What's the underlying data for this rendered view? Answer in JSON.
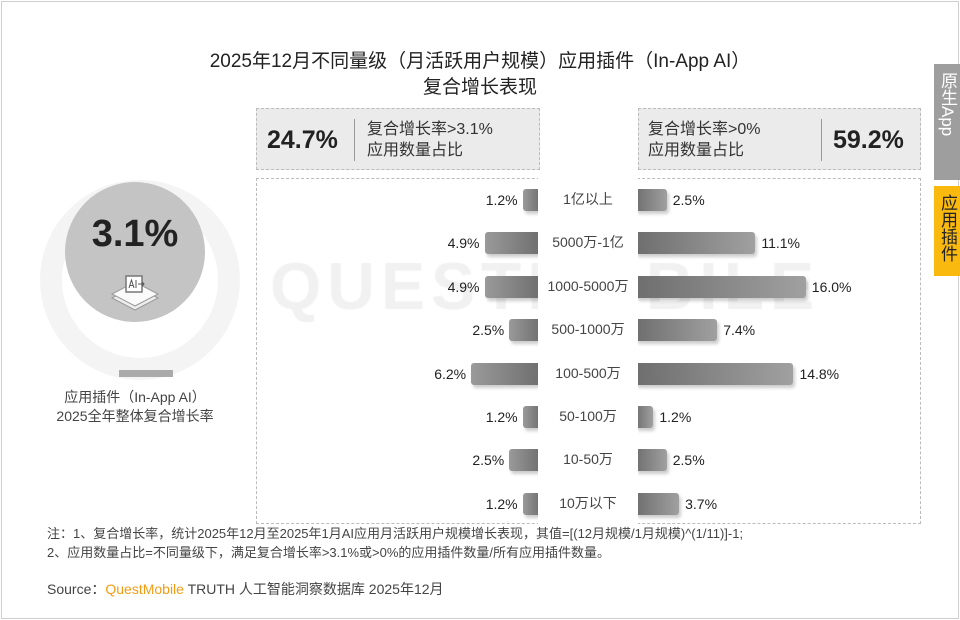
{
  "title_line1": "2025年12月不同量级（月活跃用户规模）应用插件（In-App AI）",
  "title_line2": "复合增长表现",
  "watermark": "QUESTMOBILE",
  "overall": {
    "value": "3.1%",
    "label1": "应用插件（In-App AI）",
    "label2": "2025全年整体复合增长率",
    "icon": "ai-plugin-icon"
  },
  "left_box": {
    "value": "24.7%",
    "line1": "复合增长率>3.1%",
    "line2": "应用数量占比"
  },
  "right_box": {
    "value": "59.2%",
    "line1": "复合增长率>0%",
    "line2": "应用数量占比"
  },
  "chart_data": {
    "type": "bar",
    "orientation": "horizontal-butterfly",
    "categories": [
      "1亿以上",
      "5000万-1亿",
      "1000-5000万",
      "500-1000万",
      "100-500万",
      "50-100万",
      "10-50万",
      "10万以下"
    ],
    "series": [
      {
        "name": "复合增长率>3.1% 应用数量占比",
        "side": "left",
        "values": [
          1.2,
          4.9,
          4.9,
          2.5,
          6.2,
          1.2,
          2.5,
          1.2
        ],
        "labels": [
          "1.2%",
          "4.9%",
          "4.9%",
          "2.5%",
          "6.2%",
          "1.2%",
          "2.5%",
          "1.2%"
        ]
      },
      {
        "name": "复合增长率>0% 应用数量占比",
        "side": "right",
        "values": [
          2.5,
          11.1,
          16.0,
          7.4,
          14.8,
          1.2,
          2.5,
          3.7
        ],
        "labels": [
          "2.5%",
          "11.1%",
          "16.0%",
          "7.4%",
          "14.8%",
          "1.2%",
          "2.5%",
          "3.7%"
        ]
      }
    ],
    "unit": "%",
    "colors": {
      "bar": "#808080"
    }
  },
  "notes": [
    "注：1、复合增长率，统计2025年12月至2025年1月AI应用月活跃用户规模增长表现，其值=[(12月规模/1月规模)^(1/11)]-1;",
    "2、应用数量占比=不同量级下，满足复合增长率>3.1%或>0%的应用插件数量/所有应用插件数量。"
  ],
  "source": {
    "prefix": "Source：",
    "brand": "QuestMobile",
    "rest": " TRUTH 人工智能洞察数据库 2025年12月"
  },
  "tabs": [
    {
      "label": "原生App",
      "active": false,
      "color": "#9e9e9e"
    },
    {
      "label": "应用插件",
      "active": true,
      "color": "#f9b90f"
    }
  ]
}
